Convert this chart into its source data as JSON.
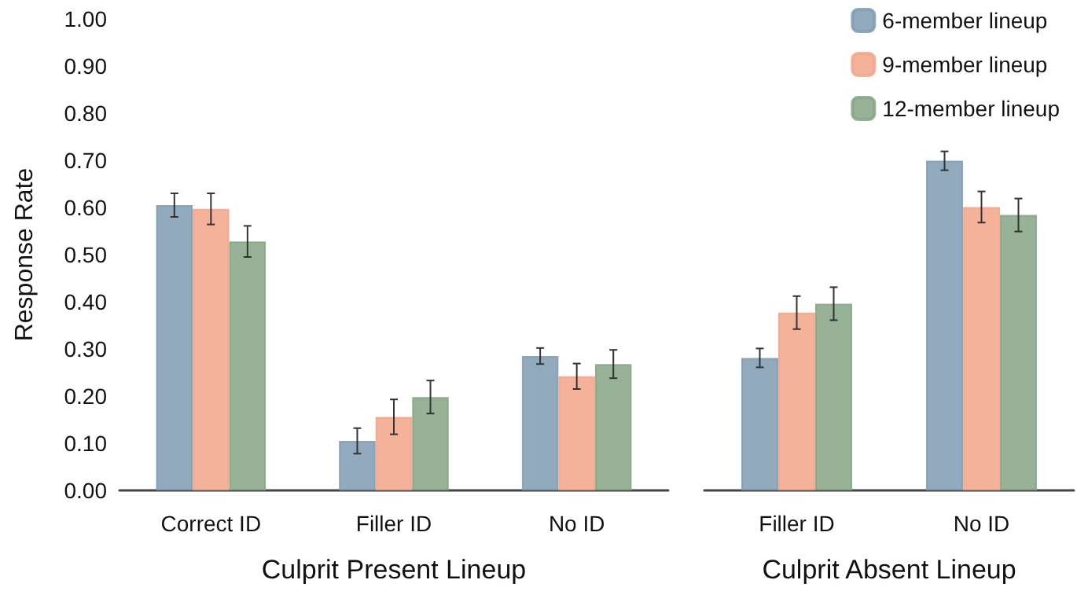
{
  "chart_data": [
    {
      "type": "bar",
      "xlabel": "Culprit Present Lineup",
      "ylabel": "Response Rate",
      "categories": [
        "Correct ID",
        "Filler ID",
        "No ID"
      ],
      "ylim": [
        0,
        1
      ],
      "yticks": [
        {
          "value": 0,
          "label": "0.00"
        },
        {
          "value": 0.1,
          "label": "0.10"
        },
        {
          "value": 0.2,
          "label": "0.20"
        },
        {
          "value": 0.3,
          "label": "0.30"
        },
        {
          "value": 0.4,
          "label": "0.40"
        },
        {
          "value": 0.5,
          "label": "0.50"
        },
        {
          "value": 0.6,
          "label": "0.60"
        },
        {
          "value": 0.7,
          "label": "0.70"
        },
        {
          "value": 0.8,
          "label": "0.80"
        },
        {
          "value": 0.9,
          "label": "0.90"
        },
        {
          "value": 1,
          "label": "1.00"
        }
      ],
      "grid": false,
      "legend": false,
      "series": [
        {
          "color": "#7f9bb3",
          "values": [
            0.605,
            0.105,
            0.285
          ],
          "errors": [
            0.025,
            0.027,
            0.017
          ]
        },
        {
          "color": "#f2a48a",
          "values": [
            0.597,
            0.156,
            0.242
          ],
          "errors": [
            0.033,
            0.037,
            0.027
          ]
        },
        {
          "color": "#85a585",
          "values": [
            0.528,
            0.198,
            0.268
          ],
          "errors": [
            0.033,
            0.035,
            0.03
          ]
        }
      ]
    },
    {
      "type": "bar",
      "xlabel": "Culprit Absent Lineup",
      "categories": [
        "Filler ID",
        "No ID"
      ],
      "ylim": [
        0,
        1
      ],
      "tick_labels": "x",
      "grid": false,
      "legend": "top right",
      "series": [
        {
          "name": "6-member lineup",
          "color": "#7f9bb3",
          "values": [
            0.281,
            0.699
          ],
          "errors": [
            0.02,
            0.02
          ]
        },
        {
          "name": "9-member lineup",
          "color": "#f2a48a",
          "values": [
            0.377,
            0.601
          ],
          "errors": [
            0.035,
            0.033
          ]
        },
        {
          "name": "12-member lineup",
          "color": "#85a585",
          "values": [
            0.396,
            0.584
          ],
          "errors": [
            0.035,
            0.035
          ]
        }
      ]
    }
  ]
}
